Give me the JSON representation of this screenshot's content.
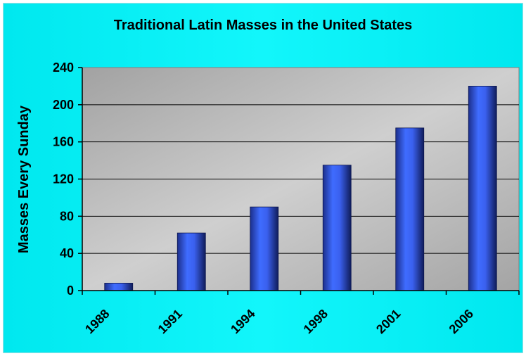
{
  "chart_data": {
    "type": "bar",
    "title": "Traditional Latin Masses in the United States",
    "xlabel": "",
    "ylabel": "Masses Every Sunday",
    "categories": [
      "1988",
      "1991",
      "1994",
      "1998",
      "2001",
      "2006"
    ],
    "values": [
      8,
      62,
      90,
      135,
      175,
      220
    ],
    "ylim": [
      0,
      240
    ],
    "yticks": [
      "0",
      "40",
      "80",
      "120",
      "160",
      "200",
      "240"
    ],
    "grid": true,
    "legend": "none",
    "colors": {
      "background": "#00E8EF",
      "plot_area": "#C0C0C0",
      "bar": "#3B63F0",
      "bar_dark": "#1A2A80",
      "gridline": "#000000"
    }
  }
}
